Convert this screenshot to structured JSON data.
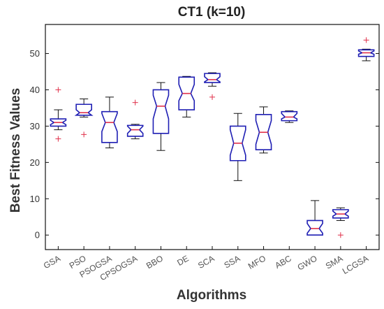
{
  "chart_data": {
    "type": "boxplot",
    "title": "CT1  (k=10)",
    "xlabel": "Algorithms",
    "ylabel": "Best  Fitness  Values",
    "ylim": [
      -4,
      58
    ],
    "yticks": [
      0,
      10,
      20,
      30,
      40,
      50
    ],
    "notched": true,
    "colors": {
      "box": "#1f1fb4",
      "median": "#e0304a",
      "whisker": "#111111",
      "outlier": "#e0304a",
      "axis": "#111111"
    },
    "categories": [
      "GSA",
      "PSO",
      "PSOGSA",
      "CPSOGSA",
      "BBO",
      "DE",
      "SCA",
      "SSA",
      "MFO",
      "ABC",
      "GWO",
      "SMA",
      "LCGSA"
    ],
    "boxes": [
      {
        "label": "GSA",
        "min": 29.0,
        "q1": 30.0,
        "median": 31.0,
        "q3": 32.0,
        "max": 34.5,
        "notch": [
          30.4,
          31.6
        ],
        "outliers": [
          40.0,
          26.5
        ]
      },
      {
        "label": "PSO",
        "min": 32.5,
        "q1": 33.0,
        "median": 33.7,
        "q3": 36.0,
        "max": 37.5,
        "notch": [
          33.0,
          34.5
        ],
        "outliers": [
          27.7
        ]
      },
      {
        "label": "PSOGSA",
        "min": 24.0,
        "q1": 25.5,
        "median": 31.0,
        "q3": 34.0,
        "max": 38.0,
        "notch": [
          28.5,
          33.5
        ],
        "outliers": []
      },
      {
        "label": "CPSOGSA",
        "min": 26.5,
        "q1": 27.2,
        "median": 29.0,
        "q3": 30.2,
        "max": 30.5,
        "notch": [
          28.0,
          30.0
        ],
        "outliers": [
          36.5
        ]
      },
      {
        "label": "BBO",
        "min": 23.3,
        "q1": 28.0,
        "median": 35.5,
        "q3": 40.0,
        "max": 42.0,
        "notch": [
          32.0,
          38.5
        ],
        "outliers": []
      },
      {
        "label": "DE",
        "min": 32.5,
        "q1": 34.5,
        "median": 39.0,
        "q3": 43.5,
        "max": 43.7,
        "notch": [
          37.0,
          41.5
        ],
        "outliers": []
      },
      {
        "label": "SCA",
        "min": 41.0,
        "q1": 42.0,
        "median": 42.8,
        "q3": 44.5,
        "max": 44.7,
        "notch": [
          42.2,
          43.6
        ],
        "outliers": [
          38.0
        ]
      },
      {
        "label": "SSA",
        "min": 15.0,
        "q1": 20.5,
        "median": 25.3,
        "q3": 30.0,
        "max": 33.5,
        "notch": [
          22.0,
          29.0
        ],
        "outliers": []
      },
      {
        "label": "MFO",
        "min": 22.6,
        "q1": 23.5,
        "median": 28.3,
        "q3": 33.2,
        "max": 35.3,
        "notch": [
          25.0,
          31.5
        ],
        "outliers": []
      },
      {
        "label": "ABC",
        "min": 31.0,
        "q1": 31.5,
        "median": 32.5,
        "q3": 34.0,
        "max": 34.2,
        "notch": [
          32.0,
          33.5
        ],
        "outliers": []
      },
      {
        "label": "GWO",
        "min": 0.0,
        "q1": 0.0,
        "median": 1.8,
        "q3": 4.0,
        "max": 9.5,
        "notch": [
          0.5,
          3.2
        ],
        "outliers": []
      },
      {
        "label": "SMA",
        "min": 4.0,
        "q1": 4.7,
        "median": 5.8,
        "q3": 7.0,
        "max": 7.5,
        "notch": [
          5.2,
          6.6
        ],
        "outliers": [
          0.0
        ]
      },
      {
        "label": "LCGSA",
        "min": 48.0,
        "q1": 49.2,
        "median": 50.2,
        "q3": 51.0,
        "max": 51.2,
        "notch": [
          49.8,
          50.7
        ],
        "outliers": [
          53.7
        ]
      }
    ]
  }
}
